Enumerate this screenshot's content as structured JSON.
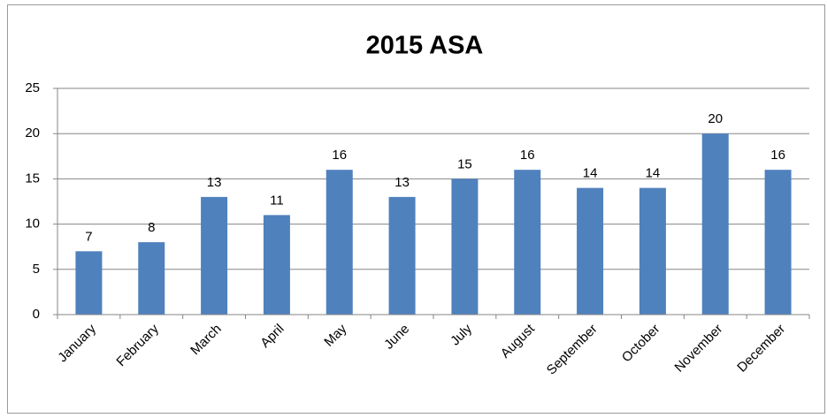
{
  "chart_data": {
    "type": "bar",
    "title": "2015 ASA",
    "categories": [
      "January",
      "February",
      "March",
      "April",
      "May",
      "June",
      "July",
      "August",
      "September",
      "October",
      "November",
      "December"
    ],
    "values": [
      7,
      8,
      13,
      11,
      16,
      13,
      15,
      16,
      14,
      14,
      20,
      16
    ],
    "color": "#4f81bd",
    "ylim": [
      0,
      25
    ],
    "yticks": [
      0,
      5,
      10,
      15,
      20,
      25
    ],
    "grid": true
  }
}
